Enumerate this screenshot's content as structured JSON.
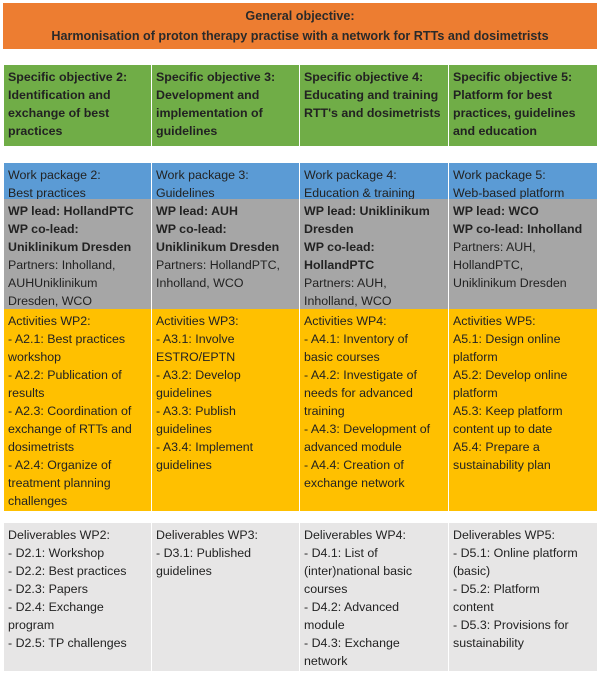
{
  "header": {
    "title": "General objective:",
    "subtitle": "Harmonisation of proton therapy practise with a network for RTTs and dosimetrists"
  },
  "objectives": [
    [
      "Specific objective 2:",
      "Identification and",
      "exchange of best",
      "practices"
    ],
    [
      "Specific objective 3:",
      "Development and",
      "implementation of",
      "guidelines"
    ],
    [
      "Specific objective 4:",
      "Educating and training",
      "RTT's and dosimetrists"
    ],
    [
      "Specific objective 5:",
      "Platform for best",
      "practices, guidelines",
      "and education"
    ]
  ],
  "work_packages": [
    [
      "Work package 2:",
      "Best practices"
    ],
    [
      "Work package 3:",
      "Guidelines"
    ],
    [
      "Work package 4:",
      "Education & training"
    ],
    [
      "Work package 5:",
      "Web-based platform"
    ]
  ],
  "leads": [
    {
      "lead": [
        "WP lead: HollandPTC",
        "WP co-lead:",
        "Uniklinikum Dresden"
      ],
      "partners": [
        "Partners: Inholland,",
        "AUHUniklinikum",
        "Dresden, WCO"
      ]
    },
    {
      "lead": [
        "WP lead: AUH",
        "WP co-lead:",
        "Uniklinikum Dresden"
      ],
      "partners": [
        "Partners: HollandPTC,",
        "Inholland, WCO"
      ]
    },
    {
      "lead": [
        "WP lead: Uniklinikum",
        "Dresden",
        "WP co-lead:",
        "HollandPTC"
      ],
      "partners": [
        "Partners: AUH,",
        "Inholland, WCO"
      ]
    },
    {
      "lead": [
        "WP lead: WCO",
        "WP co-lead: Inholland"
      ],
      "partners": [
        "Partners: AUH,",
        "HollandPTC,",
        "Uniklinikum Dresden"
      ]
    }
  ],
  "activities": [
    [
      "Activities WP2:",
      "- A2.1: Best practices",
      "workshop",
      "- A2.2: Publication of",
      "results",
      "- A2.3: Coordination of",
      "exchange of RTTs and",
      "dosimetrists",
      "- A2.4: Organize of",
      "treatment planning",
      "challenges"
    ],
    [
      "Activities WP3:",
      "- A3.1: Involve",
      "ESTRO/EPTN",
      "- A3.2: Develop",
      "guidelines",
      "- A3.3: Publish",
      "guidelines",
      "- A3.4: Implement",
      "guidelines"
    ],
    [
      "Activities WP4:",
      "- A4.1: Inventory of",
      "basic courses",
      "- A4.2: Investigate of",
      "needs for advanced",
      "training",
      "- A4.3: Development of",
      "advanced module",
      "- A4.4: Creation of",
      "exchange network"
    ],
    [
      "Activities WP5:",
      "A5.1: Design online",
      "platform",
      "A5.2: Develop online",
      "platform",
      "A5.3: Keep platform",
      "content up to date",
      "A5.4: Prepare a",
      "sustainability plan"
    ]
  ],
  "deliverables": [
    [
      "Deliverables WP2:",
      "- D2.1: Workshop",
      "- D2.2: Best practices",
      "- D2.3: Papers",
      "- D2.4: Exchange",
      "program",
      "- D2.5: TP challenges"
    ],
    [
      "Deliverables WP3:",
      "- D3.1: Published",
      "guidelines"
    ],
    [
      "Deliverables WP4:",
      "- D4.1: List of",
      "(inter)national basic",
      "courses",
      "- D4.2: Advanced",
      "module",
      "- D4.3: Exchange",
      "network"
    ],
    [
      "Deliverables WP5:",
      "- D5.1: Online platform",
      "(basic)",
      "- D5.2: Platform",
      "content",
      "- D5.3: Provisions for",
      "sustainability"
    ]
  ]
}
